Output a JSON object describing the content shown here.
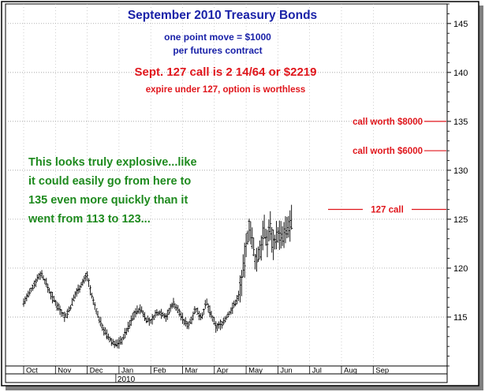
{
  "chart_data": {
    "type": "bar",
    "subtype": "ohlc",
    "title": "September 2010 Treasury Bonds",
    "subtitle_lines": [
      "one point move = $1000",
      "per futures contract"
    ],
    "headline": "Sept. 127 call is 2 14/64 or $2219",
    "subheadline": "expire under 127, option is worthless",
    "commentary_lines": [
      "This looks truly explosive...like",
      "it could easily go from here to",
      "135 even more quickly than it",
      "went from 113 to 123..."
    ],
    "y_axis": {
      "position": "right",
      "range": [
        110,
        147
      ],
      "ticks": [
        115,
        120,
        125,
        130,
        135,
        140,
        145
      ],
      "tick_labels": [
        "115",
        "120",
        "125",
        "130",
        "135",
        "140",
        "145"
      ],
      "gridlines": true,
      "gridline_style": "dotted"
    },
    "x_axis": {
      "month_labels": [
        "Oct",
        "Nov",
        "Dec",
        "Jan",
        "Feb",
        "Mar",
        "Apr",
        "May",
        "Jun",
        "Jul",
        "Aug",
        "Sep"
      ],
      "year_label": "2010",
      "year_label_under": "Jan"
    },
    "annotations": [
      {
        "label": "call worth $8000",
        "level": 135
      },
      {
        "label": "call worth $6000",
        "level": 132
      },
      {
        "label": "127 call",
        "level": 126
      }
    ],
    "series_description": "daily price bars Oct 2009 - Jun 2010",
    "price_path": [
      {
        "month": 0.0,
        "price": 116.5
      },
      {
        "month": 0.2,
        "price": 117.5
      },
      {
        "month": 0.4,
        "price": 118.8
      },
      {
        "month": 0.55,
        "price": 119.5
      },
      {
        "month": 0.7,
        "price": 118.5
      },
      {
        "month": 0.9,
        "price": 117.0
      },
      {
        "month": 1.1,
        "price": 116.0
      },
      {
        "month": 1.3,
        "price": 115.0
      },
      {
        "month": 1.45,
        "price": 115.8
      },
      {
        "month": 1.65,
        "price": 117.5
      },
      {
        "month": 1.85,
        "price": 118.5
      },
      {
        "month": 2.0,
        "price": 119.3
      },
      {
        "month": 2.15,
        "price": 117.0
      },
      {
        "month": 2.35,
        "price": 115.0
      },
      {
        "month": 2.55,
        "price": 113.5
      },
      {
        "month": 2.75,
        "price": 112.5
      },
      {
        "month": 2.95,
        "price": 112.2
      },
      {
        "month": 3.1,
        "price": 112.7
      },
      {
        "month": 3.3,
        "price": 114.0
      },
      {
        "month": 3.5,
        "price": 115.5
      },
      {
        "month": 3.7,
        "price": 115.8
      },
      {
        "month": 3.85,
        "price": 114.8
      },
      {
        "month": 4.0,
        "price": 114.5
      },
      {
        "month": 4.15,
        "price": 115.3
      },
      {
        "month": 4.3,
        "price": 115.5
      },
      {
        "month": 4.5,
        "price": 115.0
      },
      {
        "month": 4.7,
        "price": 116.5
      },
      {
        "month": 4.9,
        "price": 115.5
      },
      {
        "month": 5.05,
        "price": 114.5
      },
      {
        "month": 5.2,
        "price": 114.2
      },
      {
        "month": 5.4,
        "price": 115.8
      },
      {
        "month": 5.6,
        "price": 115.0
      },
      {
        "month": 5.75,
        "price": 116.5
      },
      {
        "month": 5.9,
        "price": 115.2
      },
      {
        "month": 6.05,
        "price": 114.0
      },
      {
        "month": 6.2,
        "price": 114.2
      },
      {
        "month": 6.35,
        "price": 114.8
      },
      {
        "month": 6.55,
        "price": 115.8
      },
      {
        "month": 6.75,
        "price": 117.0
      },
      {
        "month": 6.9,
        "price": 119.5
      },
      {
        "month": 7.0,
        "price": 122.0
      },
      {
        "month": 7.1,
        "price": 124.5
      },
      {
        "month": 7.2,
        "price": 122.5
      },
      {
        "month": 7.3,
        "price": 120.5
      },
      {
        "month": 7.45,
        "price": 122.0
      },
      {
        "month": 7.55,
        "price": 124.0
      },
      {
        "month": 7.65,
        "price": 122.5
      },
      {
        "month": 7.75,
        "price": 124.5
      },
      {
        "month": 7.85,
        "price": 122.5
      },
      {
        "month": 8.0,
        "price": 123.5
      },
      {
        "month": 8.15,
        "price": 123.0
      },
      {
        "month": 8.3,
        "price": 124.0
      },
      {
        "month": 8.45,
        "price": 124.8
      }
    ],
    "bar_color": "#000000",
    "annotation_color": "#e0161c",
    "title_color": "#1a22a8",
    "commentary_color": "#1e8a1e"
  }
}
